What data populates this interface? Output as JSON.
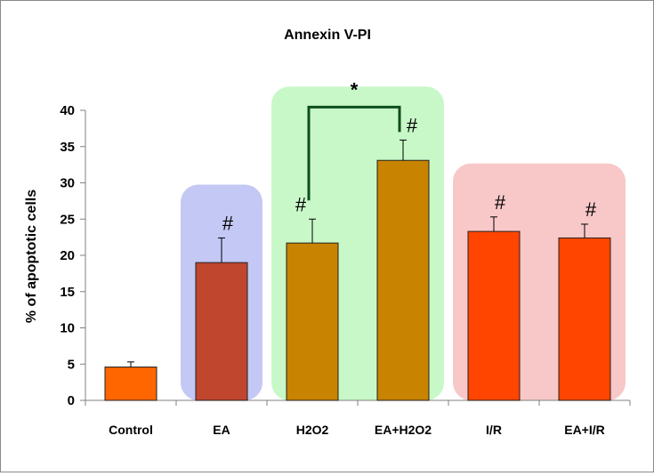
{
  "chart_data": {
    "type": "bar",
    "title": "Annexin V-PI",
    "xlabel": "",
    "ylabel": "% of apoptotic cells",
    "ylim": [
      0,
      40
    ],
    "yticks": [
      0,
      5,
      10,
      15,
      20,
      25,
      30,
      35,
      40
    ],
    "grid": false,
    "legend": "none",
    "categories": [
      "Control",
      "EA",
      "H2O2",
      "EA+H2O2",
      "I/R",
      "EA+I/R"
    ],
    "values": [
      4.6,
      19.0,
      21.7,
      33.1,
      23.3,
      22.4
    ],
    "error": [
      0.7,
      3.4,
      3.3,
      2.8,
      2.0,
      1.9
    ],
    "bar_colors": [
      "#FF6600",
      "#C0462E",
      "#C88300",
      "#C88300",
      "#FF4500",
      "#FF4500"
    ],
    "markers": [
      "",
      "#",
      "#",
      "#",
      "#",
      "#"
    ],
    "groups": [
      {
        "categories": [
          1
        ],
        "color": "#C4C8F4"
      },
      {
        "categories": [
          2,
          3
        ],
        "color": "#C8F8C8"
      },
      {
        "categories": [
          4,
          5
        ],
        "color": "#F8C8C8"
      }
    ],
    "comparison": {
      "between": [
        2,
        3
      ],
      "label": "*"
    }
  }
}
